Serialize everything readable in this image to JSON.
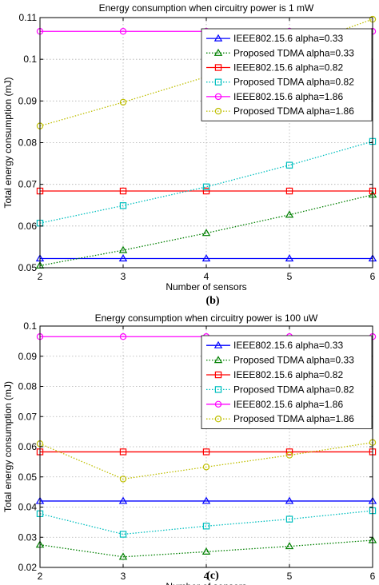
{
  "chart_data": [
    {
      "type": "line",
      "title": "Energy consumption when circuitry power is 1 mW",
      "xlabel": "Number of sensors",
      "ylabel": "Total energy consumption (mJ)",
      "caption": "(b)",
      "x": [
        2,
        3,
        4,
        5,
        6
      ],
      "xlim": [
        2,
        6
      ],
      "ylim": [
        0.05,
        0.11
      ],
      "xticks": [
        "2",
        "3",
        "4",
        "5",
        "6"
      ],
      "yticks": [
        "0.05",
        "0.06",
        "0.07",
        "0.08",
        "0.09",
        "0.1",
        "0.11"
      ],
      "grid": true,
      "legend_position": "top-right",
      "series": [
        {
          "name": "IEEE802.15.6 alpha=0.33",
          "values": [
            0.0522,
            0.0522,
            0.0522,
            0.0522,
            0.0522
          ],
          "color": "#0000ff",
          "marker": "triangle",
          "dash": "solid"
        },
        {
          "name": "Proposed TDMA alpha=0.33",
          "values": [
            0.0505,
            0.0542,
            0.0583,
            0.0627,
            0.0675
          ],
          "color": "#008000",
          "marker": "triangle",
          "dash": "dotted"
        },
        {
          "name": "IEEE802.15.6 alpha=0.82",
          "values": [
            0.0684,
            0.0684,
            0.0684,
            0.0684,
            0.0684
          ],
          "color": "#ff0000",
          "marker": "square",
          "dash": "solid"
        },
        {
          "name": "Proposed TDMA alpha=0.82",
          "values": [
            0.0607,
            0.0649,
            0.0694,
            0.0746,
            0.0803
          ],
          "color": "#00bfbf",
          "marker": "square",
          "dash": "dotted"
        },
        {
          "name": "IEEE802.15.6 alpha=1.86",
          "values": [
            0.1067,
            0.1067,
            0.1067,
            0.1067,
            0.1067
          ],
          "color": "#ff00ff",
          "marker": "circle",
          "dash": "solid"
        },
        {
          "name": "Proposed TDMA alpha=1.86",
          "values": [
            0.084,
            0.0897,
            0.0958,
            0.1025,
            0.1096
          ],
          "color": "#bfbf00",
          "marker": "circle",
          "dash": "dotted"
        }
      ]
    },
    {
      "type": "line",
      "title": "Energy consumption when circuitry power is 100 uW",
      "xlabel": "Number of sensors",
      "ylabel": "Total energy consumption (mJ)",
      "caption": "(c)",
      "x": [
        2,
        3,
        4,
        5,
        6
      ],
      "xlim": [
        2,
        6
      ],
      "ylim": [
        0.02,
        0.1
      ],
      "xticks": [
        "2",
        "3",
        "4",
        "5",
        "6"
      ],
      "yticks": [
        "0.02",
        "0.03",
        "0.04",
        "0.05",
        "0.06",
        "0.07",
        "0.08",
        "0.09",
        "0.1"
      ],
      "grid": true,
      "legend_position": "top-right",
      "series": [
        {
          "name": "IEEE802.15.6 alpha=0.33",
          "values": [
            0.042,
            0.042,
            0.042,
            0.042,
            0.042
          ],
          "color": "#0000ff",
          "marker": "triangle",
          "dash": "solid"
        },
        {
          "name": "Proposed TDMA alpha=0.33",
          "values": [
            0.0275,
            0.0235,
            0.0252,
            0.027,
            0.029
          ],
          "color": "#008000",
          "marker": "triangle",
          "dash": "dotted"
        },
        {
          "name": "IEEE802.15.6 alpha=0.82",
          "values": [
            0.0583,
            0.0583,
            0.0583,
            0.0583,
            0.0583
          ],
          "color": "#ff0000",
          "marker": "square",
          "dash": "solid"
        },
        {
          "name": "Proposed TDMA alpha=0.82",
          "values": [
            0.0378,
            0.031,
            0.0337,
            0.036,
            0.0388
          ],
          "color": "#00bfbf",
          "marker": "square",
          "dash": "dotted"
        },
        {
          "name": "IEEE802.15.6 alpha=1.86",
          "values": [
            0.0965,
            0.0965,
            0.0965,
            0.0965,
            0.0965
          ],
          "color": "#ff00ff",
          "marker": "circle",
          "dash": "solid"
        },
        {
          "name": "Proposed TDMA alpha=1.86",
          "values": [
            0.061,
            0.0493,
            0.0533,
            0.0572,
            0.0614
          ],
          "color": "#bfbf00",
          "marker": "circle",
          "dash": "dotted"
        }
      ]
    }
  ]
}
